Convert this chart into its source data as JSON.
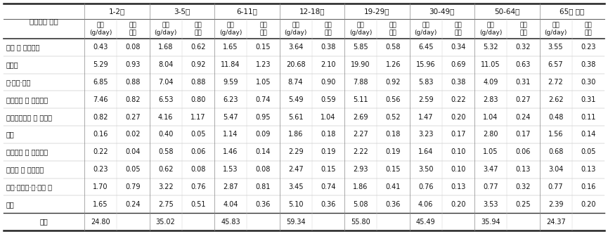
{
  "age_groups": [
    "1-2세",
    "3-5세",
    "6-11세",
    "12-18세",
    "19-29세",
    "30-49세",
    "50-64세",
    "65세 이상"
  ],
  "sub_headers": [
    "평균\n(g/day)",
    "표준\n오차"
  ],
  "categories": [
    "설탕 및 기타당류",
    "음료류",
    "빵·과자·떡류",
    "가공유류 및 발효유류",
    "아이스크림류 및 빙과류",
    "장류",
    "드레싱류 및 조미식품",
    "김치류 및 절임식품",
    "캔디·초콜릿·껌·젤류 등",
    "기타",
    "총계"
  ],
  "data": [
    [
      0.43,
      0.08,
      1.68,
      0.62,
      1.65,
      0.15,
      3.64,
      0.38,
      5.85,
      0.58,
      6.45,
      0.34,
      5.32,
      0.32,
      3.55,
      0.23
    ],
    [
      5.29,
      0.93,
      8.04,
      0.92,
      11.84,
      1.23,
      20.68,
      2.1,
      19.9,
      1.26,
      15.96,
      0.69,
      11.05,
      0.63,
      6.57,
      0.38
    ],
    [
      6.85,
      0.88,
      7.04,
      0.88,
      9.59,
      1.05,
      8.74,
      0.9,
      7.88,
      0.92,
      5.83,
      0.38,
      4.09,
      0.31,
      2.72,
      0.3
    ],
    [
      7.46,
      0.82,
      6.53,
      0.8,
      6.23,
      0.74,
      5.49,
      0.59,
      5.11,
      0.56,
      2.59,
      0.22,
      2.83,
      0.27,
      2.62,
      0.31
    ],
    [
      0.82,
      0.27,
      4.16,
      1.17,
      5.47,
      0.95,
      5.61,
      1.04,
      2.69,
      0.52,
      1.47,
      0.2,
      1.04,
      0.24,
      0.48,
      0.11
    ],
    [
      0.16,
      0.02,
      0.4,
      0.05,
      1.14,
      0.09,
      1.86,
      0.18,
      2.27,
      0.18,
      3.23,
      0.17,
      2.8,
      0.17,
      1.56,
      0.14
    ],
    [
      0.22,
      0.04,
      0.58,
      0.06,
      1.46,
      0.14,
      2.29,
      0.19,
      2.22,
      0.19,
      1.64,
      0.1,
      1.05,
      0.06,
      0.68,
      0.05
    ],
    [
      0.23,
      0.05,
      0.62,
      0.08,
      1.53,
      0.08,
      2.47,
      0.15,
      2.93,
      0.15,
      3.5,
      0.1,
      3.47,
      0.13,
      3.04,
      0.13
    ],
    [
      1.7,
      0.79,
      3.22,
      0.76,
      2.87,
      0.81,
      3.45,
      0.74,
      1.86,
      0.41,
      0.76,
      0.13,
      0.77,
      0.32,
      0.77,
      0.16
    ],
    [
      1.65,
      0.24,
      2.75,
      0.51,
      4.04,
      0.36,
      5.1,
      0.36,
      5.08,
      0.36,
      4.06,
      0.2,
      3.53,
      0.25,
      2.39,
      0.2
    ],
    [
      24.8,
      null,
      35.02,
      null,
      45.83,
      null,
      59.34,
      null,
      55.8,
      null,
      45.49,
      null,
      35.94,
      null,
      24.37,
      null
    ]
  ],
  "cat_label": "가공식품 분류",
  "font_size": 7.0,
  "header_font_size": 7.5
}
